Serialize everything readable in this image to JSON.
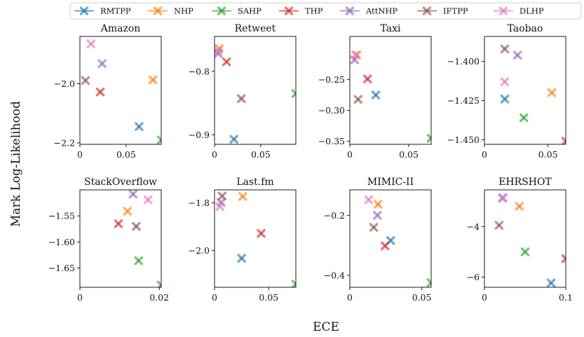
{
  "figure": {
    "xlabel": "ECE",
    "ylabel": "Mark Log-Likelihood"
  },
  "legend": [
    {
      "name": "RMTPP",
      "color": "#1f77b4"
    },
    {
      "name": "NHP",
      "color": "#ff7f0e"
    },
    {
      "name": "SAHP",
      "color": "#2ca02c"
    },
    {
      "name": "THP",
      "color": "#d62728"
    },
    {
      "name": "AttNHP",
      "color": "#9467bd"
    },
    {
      "name": "IFTPP",
      "color": "#8c564b"
    },
    {
      "name": "DLHP",
      "color": "#e377c2"
    }
  ],
  "chart_data": [
    {
      "type": "scatter",
      "title": "Amazon",
      "xlim": [
        0,
        0.088
      ],
      "ylim": [
        -2.205,
        -1.84
      ],
      "xticks": [
        {
          "v": 0,
          "label": "0"
        },
        {
          "v": 0.05,
          "label": "0.05"
        }
      ],
      "yticks": [
        {
          "v": -2.0,
          "label": "−2.0"
        },
        {
          "v": -2.2,
          "label": "−2.2"
        }
      ],
      "series": [
        {
          "name": "RMTPP",
          "x": 0.064,
          "y": -2.145
        },
        {
          "name": "NHP",
          "x": 0.079,
          "y": -1.987
        },
        {
          "name": "SAHP",
          "x": 0.088,
          "y": -2.19
        },
        {
          "name": "THP",
          "x": 0.022,
          "y": -2.028
        },
        {
          "name": "AttNHP",
          "x": 0.024,
          "y": -1.932
        },
        {
          "name": "IFTPP",
          "x": 0.006,
          "y": -1.989
        },
        {
          "name": "DLHP",
          "x": 0.012,
          "y": -1.865
        }
      ]
    },
    {
      "type": "scatter",
      "title": "Retweet",
      "xlim": [
        0,
        0.088
      ],
      "ylim": [
        -0.915,
        -0.745
      ],
      "xticks": [
        {
          "v": 0,
          "label": "0"
        },
        {
          "v": 0.05,
          "label": "0.05"
        }
      ],
      "yticks": [
        {
          "v": -0.8,
          "label": "−0.8"
        },
        {
          "v": -0.9,
          "label": "−0.9"
        }
      ],
      "series": [
        {
          "name": "RMTPP",
          "x": 0.021,
          "y": -0.907
        },
        {
          "name": "NHP",
          "x": 0.005,
          "y": -0.764
        },
        {
          "name": "SAHP",
          "x": 0.088,
          "y": -0.835
        },
        {
          "name": "THP",
          "x": 0.013,
          "y": -0.785
        },
        {
          "name": "AttNHP",
          "x": 0.004,
          "y": -0.772
        },
        {
          "name": "IFTPP",
          "x": 0.029,
          "y": -0.843
        },
        {
          "name": "DLHP",
          "x": 0.004,
          "y": -0.768
        }
      ]
    },
    {
      "type": "scatter",
      "title": "Taxi",
      "xlim": [
        0,
        0.069
      ],
      "ylim": [
        -0.355,
        -0.18
      ],
      "xticks": [
        {
          "v": 0,
          "label": "0"
        },
        {
          "v": 0.05,
          "label": "0.05"
        }
      ],
      "yticks": [
        {
          "v": -0.25,
          "label": "−0.25"
        },
        {
          "v": -0.3,
          "label": "−0.30"
        },
        {
          "v": -0.35,
          "label": "−0.35"
        }
      ],
      "series": [
        {
          "name": "RMTPP",
          "x": 0.022,
          "y": -0.275
        },
        {
          "name": "NHP",
          "x": 0.006,
          "y": -0.21
        },
        {
          "name": "SAHP",
          "x": 0.069,
          "y": -0.345
        },
        {
          "name": "THP",
          "x": 0.015,
          "y": -0.249
        },
        {
          "name": "AttNHP",
          "x": 0.004,
          "y": -0.218
        },
        {
          "name": "IFTPP",
          "x": 0.007,
          "y": -0.282
        },
        {
          "name": "DLHP",
          "x": 0.005,
          "y": -0.21
        }
      ]
    },
    {
      "type": "scatter",
      "title": "Taobao",
      "xlim": [
        0,
        0.064
      ],
      "ylim": [
        -1.453,
        -1.384
      ],
      "xticks": [
        {
          "v": 0,
          "label": "0"
        },
        {
          "v": 0.05,
          "label": "0.05"
        }
      ],
      "yticks": [
        {
          "v": -1.4,
          "label": "−1.400"
        },
        {
          "v": -1.425,
          "label": "−1.425"
        },
        {
          "v": -1.45,
          "label": "−1.450"
        }
      ],
      "series": [
        {
          "name": "RMTPP",
          "x": 0.016,
          "y": -1.424
        },
        {
          "name": "NHP",
          "x": 0.053,
          "y": -1.42
        },
        {
          "name": "SAHP",
          "x": 0.031,
          "y": -1.436
        },
        {
          "name": "THP",
          "x": 0.064,
          "y": -1.451
        },
        {
          "name": "AttNHP",
          "x": 0.026,
          "y": -1.396
        },
        {
          "name": "IFTPP",
          "x": 0.016,
          "y": -1.392
        },
        {
          "name": "DLHP",
          "x": 0.016,
          "y": -1.413
        }
      ]
    },
    {
      "type": "scatter",
      "title": "StackOverflow",
      "xlim": [
        0,
        0.0205
      ],
      "ylim": [
        -1.687,
        -1.5
      ],
      "xticks": [
        {
          "v": 0,
          "label": "0"
        },
        {
          "v": 0.02,
          "label": "0.02"
        }
      ],
      "yticks": [
        {
          "v": -1.55,
          "label": "−1.55"
        },
        {
          "v": -1.6,
          "label": "−1.60"
        },
        {
          "v": -1.65,
          "label": "−1.65"
        }
      ],
      "series": [
        {
          "name": "RMTPP",
          "x": 0.0205,
          "y": -1.683
        },
        {
          "name": "NHP",
          "x": 0.012,
          "y": -1.541
        },
        {
          "name": "SAHP",
          "x": 0.0148,
          "y": -1.636
        },
        {
          "name": "THP",
          "x": 0.0097,
          "y": -1.565
        },
        {
          "name": "AttNHP",
          "x": 0.0134,
          "y": -1.508
        },
        {
          "name": "IFTPP",
          "x": 0.0142,
          "y": -1.57
        },
        {
          "name": "DLHP",
          "x": 0.0172,
          "y": -1.519
        }
      ]
    },
    {
      "type": "scatter",
      "title": "Last.fm",
      "xlim": [
        0,
        0.075
      ],
      "ylim": [
        -2.155,
        -1.745
      ],
      "xticks": [
        {
          "v": 0,
          "label": "0"
        },
        {
          "v": 0.05,
          "label": "0.05"
        }
      ],
      "yticks": [
        {
          "v": -1.8,
          "label": "−1.8"
        },
        {
          "v": -2.0,
          "label": "−2.0"
        }
      ],
      "series": [
        {
          "name": "RMTPP",
          "x": 0.025,
          "y": -2.033
        },
        {
          "name": "NHP",
          "x": 0.026,
          "y": -1.773
        },
        {
          "name": "SAHP",
          "x": 0.075,
          "y": -2.142
        },
        {
          "name": "THP",
          "x": 0.043,
          "y": -1.928
        },
        {
          "name": "AttNHP",
          "x": 0.006,
          "y": -1.798
        },
        {
          "name": "IFTPP",
          "x": 0.007,
          "y": -1.771
        },
        {
          "name": "DLHP",
          "x": 0.005,
          "y": -1.815
        }
      ]
    },
    {
      "type": "scatter",
      "title": "MIMIC-II",
      "xlim": [
        0,
        0.0565
      ],
      "ylim": [
        -0.44,
        -0.115
      ],
      "xticks": [
        {
          "v": 0,
          "label": "0"
        },
        {
          "v": 0.05,
          "label": "0.05"
        }
      ],
      "yticks": [
        {
          "v": -0.2,
          "label": "−0.2"
        },
        {
          "v": -0.4,
          "label": "−0.4"
        }
      ],
      "series": [
        {
          "name": "RMTPP",
          "x": 0.0283,
          "y": -0.284
        },
        {
          "name": "NHP",
          "x": 0.0196,
          "y": -0.163
        },
        {
          "name": "SAHP",
          "x": 0.0565,
          "y": -0.425
        },
        {
          "name": "THP",
          "x": 0.0245,
          "y": -0.302
        },
        {
          "name": "AttNHP",
          "x": 0.0192,
          "y": -0.2
        },
        {
          "name": "IFTPP",
          "x": 0.0166,
          "y": -0.24
        },
        {
          "name": "DLHP",
          "x": 0.0131,
          "y": -0.148
        }
      ]
    },
    {
      "type": "scatter",
      "title": "EHRSHOT",
      "xlim": [
        0,
        0.1
      ],
      "ylim": [
        -6.4,
        -2.55
      ],
      "xticks": [
        {
          "v": 0,
          "label": "0"
        },
        {
          "v": 0.1,
          "label": "0.1"
        }
      ],
      "yticks": [
        {
          "v": -4,
          "label": "−4"
        },
        {
          "v": -6,
          "label": "−6"
        }
      ],
      "series": [
        {
          "name": "RMTPP",
          "x": 0.082,
          "y": -6.23
        },
        {
          "name": "NHP",
          "x": 0.043,
          "y": -3.2
        },
        {
          "name": "SAHP",
          "x": 0.05,
          "y": -5.0
        },
        {
          "name": "THP",
          "x": 0.1,
          "y": -5.27
        },
        {
          "name": "AttNHP",
          "x": 0.022,
          "y": -2.87
        },
        {
          "name": "IFTPP",
          "x": 0.018,
          "y": -3.95
        },
        {
          "name": "DLHP",
          "x": 0.023,
          "y": -2.87
        }
      ]
    }
  ]
}
